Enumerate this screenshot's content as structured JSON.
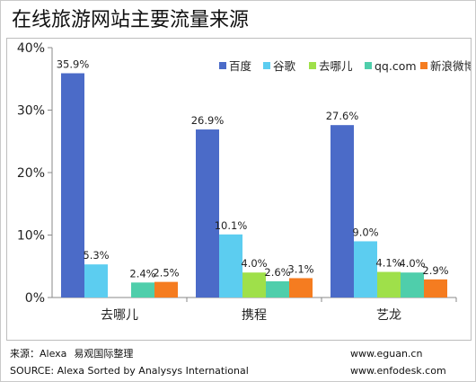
{
  "title": "在线旅游网站主要流量来源",
  "chart_data": {
    "type": "bar",
    "categories": [
      "去哪儿",
      "携程",
      "艺龙"
    ],
    "series": [
      {
        "name": "百度",
        "color": "#4b6bc8",
        "values": [
          35.9,
          26.9,
          27.6
        ],
        "labels": [
          "35.9%",
          "26.9%",
          "27.6%"
        ]
      },
      {
        "name": "谷歌",
        "color": "#5ccdf0",
        "values": [
          5.3,
          10.1,
          9.0
        ],
        "labels": [
          "5.3%",
          "10.1%",
          "9.0%"
        ]
      },
      {
        "name": "去哪儿",
        "color": "#9fe04a",
        "values": [
          0,
          4.0,
          4.1
        ],
        "labels": [
          "",
          "4.0%",
          "4.1%"
        ]
      },
      {
        "name": "qq.com",
        "color": "#4fceab",
        "values": [
          2.4,
          2.6,
          4.0
        ],
        "labels": [
          "2.4%",
          "2.6%",
          "4.0%"
        ]
      },
      {
        "name": "新浪微博",
        "color": "#f57c20",
        "values": [
          2.5,
          3.1,
          2.9
        ],
        "labels": [
          "2.5%",
          "3.1%",
          "2.9%"
        ]
      }
    ],
    "y_ticks": [
      "0%",
      "10%",
      "20%",
      "30%",
      "40%"
    ],
    "ylim": [
      0,
      40
    ],
    "grid": false,
    "legend_position": "top-right"
  },
  "footer": {
    "source_cn_label": "来源：Alexa",
    "source_cn_org": "易观国际整理",
    "source_en": "SOURCE: Alexa  Sorted by Analysys International",
    "url_1": "www.eguan.cn",
    "url_2": "www.enfodesk.com"
  }
}
